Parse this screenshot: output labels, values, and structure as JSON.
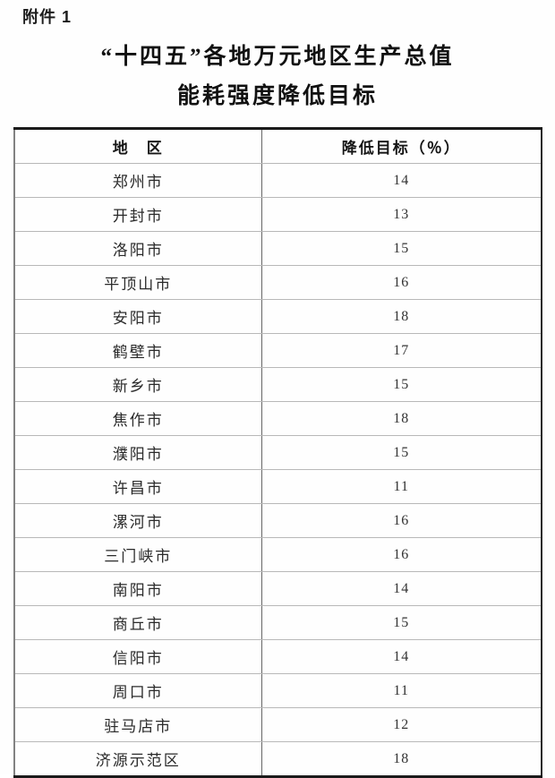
{
  "document": {
    "attachment_label": "附件 1",
    "title_line1": "“十四五”各地万元地区生产总值",
    "title_line2": "能耗强度降低目标"
  },
  "table": {
    "headers": [
      "地　区",
      "降低目标（％）"
    ],
    "rows": [
      {
        "region": "郑州市",
        "target": "14"
      },
      {
        "region": "开封市",
        "target": "13"
      },
      {
        "region": "洛阳市",
        "target": "15"
      },
      {
        "region": "平顶山市",
        "target": "16"
      },
      {
        "region": "安阳市",
        "target": "18"
      },
      {
        "region": "鹤壁市",
        "target": "17"
      },
      {
        "region": "新乡市",
        "target": "15"
      },
      {
        "region": "焦作市",
        "target": "18"
      },
      {
        "region": "濮阳市",
        "target": "15"
      },
      {
        "region": "许昌市",
        "target": "11"
      },
      {
        "region": "漯河市",
        "target": "16"
      },
      {
        "region": "三门峡市",
        "target": "16"
      },
      {
        "region": "南阳市",
        "target": "14"
      },
      {
        "region": "商丘市",
        "target": "15"
      },
      {
        "region": "信阳市",
        "target": "14"
      },
      {
        "region": "周口市",
        "target": "11"
      },
      {
        "region": "驻马店市",
        "target": "12"
      },
      {
        "region": "济源示范区",
        "target": "18"
      }
    ]
  },
  "colors": {
    "text": "#222222",
    "title": "#111111",
    "border_dark": "#1a1a1a",
    "border_gray": "#666666",
    "border_light": "#b8b8b8",
    "background": "#fefefe"
  }
}
